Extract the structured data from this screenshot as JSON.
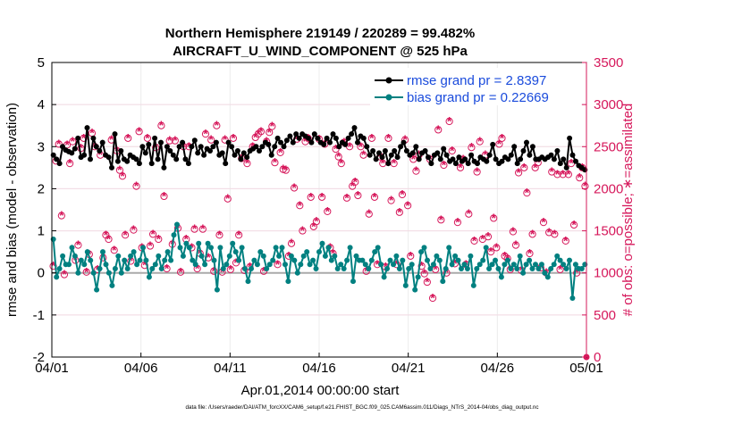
{
  "chart_data": {
    "type": "line",
    "title": "Northern Hemisphere 219149 / 220289 = 99.482%",
    "subtitle": "AIRCRAFT_U_WIND_COMPONENT @ 525 hPa",
    "xlabel": "Apr.01,2014 00:00:00 start",
    "ylabel_left": "rmse and bias (model - observation)",
    "ylabel_right": "# of obs: o=possible; ∗=assimilated",
    "footnote": "data file: /Users/raeder/DAI/ATM_forcXX/CAM6_setup/f.e21.FHIST_BGC.f09_025.CAM6assim.011/Diags_NTrS_2014-04/obs_diag_output.nc",
    "xlim_days": [
      0,
      30
    ],
    "ylim_left": [
      -2,
      5
    ],
    "ylim_right": [
      0,
      3500
    ],
    "x_tick_labels": [
      "04/01",
      "04/06",
      "04/11",
      "04/16",
      "04/21",
      "04/26",
      "05/01"
    ],
    "y_left_ticks": [
      "-2",
      "-1",
      "0",
      "1",
      "2",
      "3",
      "4",
      "5"
    ],
    "y_right_ticks": [
      "0",
      "500",
      "1000",
      "1500",
      "2000",
      "2500",
      "3000",
      "3500"
    ],
    "grid": true,
    "legend_position": "top-right",
    "legend": [
      {
        "label": "rmse grand pr = 2.8397",
        "color": "#000000"
      },
      {
        "label": "bias grand pr = 0.22669",
        "color": "#008080"
      }
    ],
    "colors": {
      "rmse": "#000000",
      "bias": "#008080",
      "obs": "#d6185b",
      "legend_text": "#1a4bdc",
      "right_axis": "#d6185b"
    },
    "series": [
      {
        "name": "rmse grand pr = 2.8397",
        "axis": "left",
        "values": [
          2.8,
          2.7,
          2.6,
          3.0,
          2.92,
          2.88,
          2.85,
          2.95,
          3.2,
          2.75,
          2.8,
          3.45,
          2.7,
          3.2,
          3.0,
          2.9,
          3.1,
          2.8,
          2.75,
          2.5,
          3.3,
          2.65,
          2.9,
          2.7,
          2.65,
          2.8,
          2.75,
          2.7,
          2.6,
          3.0,
          2.85,
          3.05,
          2.6,
          3.2,
          2.7,
          3.1,
          2.5,
          3.0,
          2.9,
          2.8,
          2.7,
          3.0,
          3.1,
          2.7,
          2.6,
          3.0,
          3.15,
          2.85,
          3.0,
          2.8,
          2.95,
          2.9,
          3.0,
          3.1,
          2.8,
          2.85,
          2.6,
          3.1,
          3.0,
          2.8,
          2.9,
          2.7,
          2.85,
          2.75,
          2.9,
          2.95,
          3.0,
          2.9,
          3.0,
          3.1,
          3.05,
          2.8,
          3.0,
          3.2,
          3.1,
          3.0,
          3.15,
          3.25,
          3.1,
          3.3,
          3.2,
          3.3,
          3.25,
          3.2,
          3.1,
          3.3,
          3.2,
          3.1,
          3.05,
          3.2,
          3.1,
          3.3,
          3.2,
          3.0,
          3.1,
          3.05,
          3.2,
          3.3,
          3.45,
          3.1,
          3.25,
          3.2,
          3.0,
          2.8,
          2.9,
          2.7,
          2.85,
          2.75,
          2.9,
          2.6,
          2.8,
          2.9,
          2.75,
          3.0,
          3.1,
          2.9,
          2.8,
          2.85,
          3.0,
          2.7,
          2.85,
          2.9,
          2.75,
          2.6,
          2.8,
          2.85,
          2.7,
          2.95,
          2.8,
          2.65,
          2.7,
          2.6,
          2.75,
          2.65,
          2.7,
          2.6,
          2.8,
          2.65,
          2.6,
          2.75,
          2.7,
          2.65,
          2.8,
          3.05,
          2.7,
          2.6,
          2.65,
          2.75,
          2.7,
          2.8,
          3.0,
          2.6,
          2.7,
          2.9,
          3.1,
          2.8,
          3.0,
          2.7,
          2.7,
          2.75,
          2.7,
          2.75,
          2.8,
          2.7,
          2.9,
          2.6,
          2.7,
          2.5,
          3.2,
          2.8,
          2.65,
          2.55,
          2.5,
          2.45
        ]
      },
      {
        "name": "bias grand pr = 0.22669",
        "axis": "left",
        "values": [
          0.8,
          -0.1,
          0.1,
          0.4,
          0.2,
          0.2,
          0.6,
          0.4,
          0.0,
          0.3,
          0.2,
          0.5,
          0.3,
          0.0,
          -0.4,
          0.1,
          0.5,
          0.2,
          0.0,
          -0.3,
          0.1,
          0.4,
          0.0,
          0.3,
          0.1,
          0.4,
          0.5,
          0.2,
          0.3,
          0.6,
          0.3,
          -0.1,
          0.1,
          0.2,
          0.4,
          0.1,
          0.3,
          0.5,
          0.3,
          0.9,
          1.15,
          0.6,
          0.4,
          0.7,
          0.6,
          0.3,
          0.2,
          0.7,
          0.4,
          0.2,
          0.7,
          0.6,
          0.3,
          -0.4,
          0.6,
          0.1,
          0.2,
          0.4,
          0.7,
          0.5,
          0.3,
          0.6,
          0.1,
          -0.2,
          0.1,
          0.3,
          0.2,
          0.5,
          0.4,
          0.1,
          0.2,
          0.3,
          0.6,
          0.4,
          0.6,
          0.2,
          -0.2,
          0.4,
          0.3,
          0.0,
          0.2,
          0.4,
          0.5,
          0.2,
          0.3,
          0.1,
          0.5,
          0.7,
          0.4,
          0.6,
          0.3,
          0.4,
          0.1,
          0.2,
          0.1,
          0.3,
          0.6,
          -0.2,
          0.4,
          0.3,
          0.3,
          0.2,
          0.1,
          0.3,
          0.5,
          0.6,
          0.2,
          -0.1,
          0.1,
          0.3,
          0.2,
          0.4,
          0.1,
          0.3,
          -0.3,
          0.1,
          0.2,
          -0.4,
          -0.1,
          0.5,
          0.6,
          0.3,
          0.1,
          0.2,
          0.4,
          0.3,
          -0.2,
          0.1,
          0.6,
          0.2,
          0.4,
          0.3,
          0.1,
          0.2,
          0.1,
          0.4,
          -0.3,
          0.1,
          0.2,
          0.3,
          0.6,
          0.1,
          0.2,
          0.3,
          0.1,
          -0.1,
          0.2,
          0.3,
          0.1,
          0.2,
          0.1,
          0.4,
          0.0,
          0.2,
          0.3,
          0.1,
          0.2,
          0.1,
          0.2,
          0.0,
          -0.1,
          0.1,
          0.2,
          0.4,
          0.3,
          0.2,
          0.1,
          0.3,
          -0.6,
          0.2,
          0.1,
          0.1,
          0.2
        ]
      },
      {
        "name": "",
        "axis": "right",
        "marker": "*",
        "values": [
          1080,
          2330,
          2530,
          1680,
          980,
          2520,
          2300,
          2560,
          1150,
          1330,
          2480,
          2600,
          1010,
          1220,
          2660,
          2500,
          1040,
          2400,
          1180,
          1450,
          1400,
          2580,
          1270,
          2450,
          2220,
          2150,
          1450,
          2600,
          1140,
          1510,
          2030,
          2680,
          1300,
          1090,
          2600,
          1320,
          1460,
          2490,
          1400,
          2750,
          1910,
          1050,
          2570,
          1340,
          2570,
          1530,
          1010,
          2500,
          1400,
          2500,
          1300,
          1520,
          1050,
          1230,
          1520,
          2650,
          1180,
          2580,
          1020,
          2750,
          1450,
          1010,
          2580,
          1880,
          1040,
          2600,
          1120,
          1450,
          2360,
          1030,
          2300,
          1070,
          2500,
          2610,
          2650,
          2680,
          1020,
          2560,
          2670,
          2740,
          2310,
          1100,
          2430,
          2230,
          2220,
          1200,
          1350,
          2010,
          2590,
          1800,
          1500,
          2560,
          2600,
          1900,
          1550,
          1610,
          2590,
          1900,
          2530,
          1730,
          1300,
          1230,
          2470,
          2380,
          2300,
          2550,
          1890,
          2500,
          2030,
          2080,
          1920,
          2500,
          2400,
          1020,
          1700,
          2600,
          1900,
          1100,
          2380,
          2300,
          1070,
          2600,
          1860,
          2300,
          1100,
          1720,
          1930,
          2580,
          1800,
          1200,
          2350,
          2210,
          2400,
          1080,
          990,
          890,
          2350,
          700,
          1040,
          2700,
          1630,
          2280,
          1000,
          2800,
          2450,
          1110,
          1600,
          2250,
          2350,
          1100,
          1700,
          2490,
          1380,
          2200,
          2560,
          1400,
          2400,
          1430,
          1250,
          1650,
          1300,
          2530,
          2600,
          1200,
          1170,
          1040,
          1490,
          1330,
          2190,
          1030,
          2250,
          1950,
          1230,
          1460,
          2250,
          2310,
          1060,
          1600,
          1000,
          1480,
          2200,
          1460,
          2170,
          1040,
          2170,
          1380,
          2170,
          2300,
          1570,
          1000,
          2130,
          2250,
          2030
        ]
      },
      {
        "name": "",
        "axis": "right",
        "marker": "o",
        "values": [
          1080,
          2330,
          2530,
          1680,
          980,
          2520,
          2300,
          2560,
          1150,
          1330,
          2480,
          2600,
          1010,
          1220,
          2660,
          2500,
          1040,
          2400,
          1180,
          1450,
          1400,
          2580,
          1270,
          2450,
          2220,
          2150,
          1450,
          2600,
          1140,
          1510,
          2030,
          2680,
          1300,
          1090,
          2600,
          1320,
          1460,
          2490,
          1400,
          2750,
          1910,
          1050,
          2570,
          1340,
          2570,
          1530,
          1010,
          2500,
          1400,
          2500,
          1300,
          1520,
          1050,
          1230,
          1520,
          2650,
          1180,
          2580,
          1020,
          2750,
          1450,
          1010,
          2580,
          1880,
          1040,
          2600,
          1120,
          1450,
          2360,
          1030,
          2300,
          1070,
          2500,
          2610,
          2650,
          2680,
          1020,
          2560,
          2670,
          2740,
          2310,
          1100,
          2430,
          2230,
          2220,
          1200,
          1350,
          2010,
          2590,
          1800,
          1500,
          2560,
          2600,
          1900,
          1550,
          1610,
          2590,
          1900,
          2530,
          1730,
          1300,
          1230,
          2470,
          2380,
          2300,
          2550,
          1890,
          2500,
          2030,
          2080,
          1920,
          2500,
          2400,
          1020,
          1700,
          2600,
          1900,
          1100,
          2380,
          2300,
          1070,
          2600,
          1860,
          2300,
          1100,
          1720,
          1930,
          2580,
          1800,
          1200,
          2350,
          2210,
          2400,
          1080,
          990,
          890,
          2350,
          700,
          1040,
          2700,
          1630,
          2280,
          1000,
          2800,
          2450,
          1110,
          1600,
          2250,
          2350,
          1100,
          1700,
          2490,
          1380,
          2200,
          2560,
          1400,
          2400,
          1430,
          1250,
          1650,
          1300,
          2530,
          2600,
          1200,
          1170,
          1040,
          1490,
          1330,
          2190,
          1030,
          2250,
          1950,
          1230,
          1460,
          2250,
          2310,
          1060,
          1600,
          1000,
          1480,
          2200,
          1460,
          2170,
          1040,
          2170,
          1380,
          2170,
          2300,
          1570,
          1000,
          2130,
          2250,
          2030
        ]
      }
    ]
  }
}
